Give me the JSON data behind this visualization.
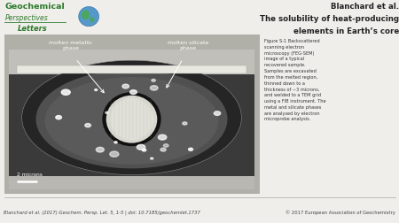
{
  "title_line1": "Blanchard et al.",
  "title_line2": "The solubility of heat-producing",
  "title_line3": "elements in Earth’s core",
  "label_left": "molten metallic\nphase",
  "label_right": "molten silicate\nphase",
  "scale_label": "2 microns",
  "figure_caption": "Figure S-1 Backscattered\nscanning electron\nmicroscopy (FEG-SEM)\nimage of a typical\nrecovered sample.\nSamples are excavated\nfrom the melted region,\nthinned down to a\nthickness of ~3 microns,\nand welded to a TEM grid\nusing a FIB instrument. The\nmetal and silicate phases\nare analysed by electron\nmicroprobe analysis.",
  "footer_left": "Blanchard et al. (2017) Geochem. Persp. Let. 5, 1-5 | doi: 10.7185/geochemlet.1737",
  "footer_right": "© 2017 European Association of Geochemistry",
  "bg_color": "#f0eeeb",
  "img_dark": "#3c3c3c",
  "img_mid": "#606060",
  "img_light_border": "#b8b8b0"
}
